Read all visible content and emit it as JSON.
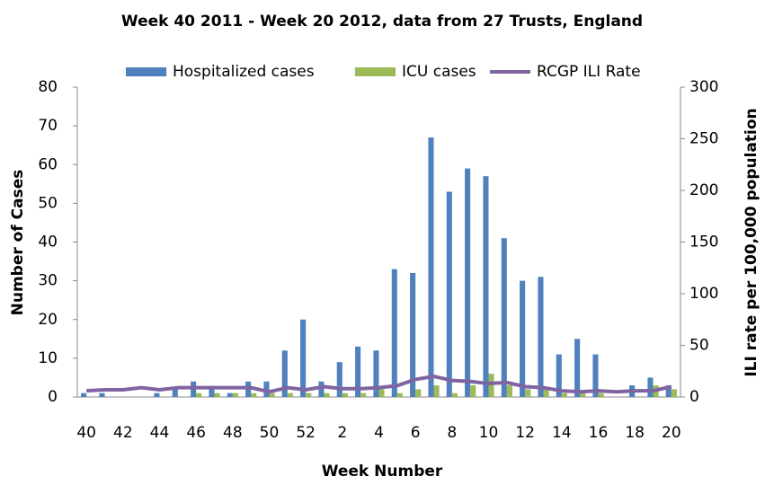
{
  "chart_data": {
    "type": "bar",
    "title": "Week 40 2011 - Week 20 2012, data from 27 Trusts, England",
    "x_label": "Week Number",
    "y_label": "Number of Cases",
    "y2_label": "ILI rate per 100,000 population",
    "categories": [
      "40",
      null,
      "42",
      null,
      "44",
      null,
      "46",
      null,
      "48",
      null,
      "50",
      null,
      "52",
      null,
      "2",
      null,
      "4",
      null,
      "6",
      null,
      "8",
      null,
      "10",
      null,
      "12",
      null,
      "14",
      null,
      "16",
      null,
      "18",
      null,
      "20"
    ],
    "series": [
      {
        "name": "Hospitalized cases",
        "color": "#4f81bd",
        "values": [
          1,
          1,
          0,
          0,
          1,
          2,
          4,
          2,
          1,
          4,
          4,
          12,
          20,
          4,
          9,
          13,
          12,
          33,
          32,
          67,
          53,
          59,
          57,
          41,
          30,
          31,
          11,
          15,
          11,
          0,
          3,
          5,
          3
        ]
      },
      {
        "name": "ICU cases",
        "color": "#9bbb59",
        "values": [
          0,
          0,
          0,
          0,
          0,
          0,
          1,
          1,
          1,
          1,
          1,
          1,
          1,
          1,
          1,
          1,
          2,
          1,
          2,
          3,
          1,
          3,
          6,
          3,
          2,
          2,
          1,
          1,
          1,
          0,
          0,
          3,
          2
        ]
      },
      {
        "name": "RCGP ILI Rate",
        "color": "#8064a2",
        "type": "line",
        "axis": "y2",
        "values": [
          6,
          7,
          7,
          9,
          7,
          9,
          9,
          9,
          9,
          9,
          5,
          9,
          7,
          10,
          8,
          8,
          9,
          11,
          17,
          20,
          16,
          15,
          13,
          14,
          10,
          9,
          6,
          5,
          6,
          5,
          6,
          6,
          10
        ]
      }
    ],
    "ylim": [
      0,
      80
    ],
    "yticks": [
      0,
      10,
      20,
      30,
      40,
      50,
      60,
      70,
      80
    ],
    "y2lim": [
      0,
      300
    ],
    "y2ticks": [
      0,
      50,
      100,
      150,
      200,
      250,
      300
    ],
    "legend": "top"
  }
}
